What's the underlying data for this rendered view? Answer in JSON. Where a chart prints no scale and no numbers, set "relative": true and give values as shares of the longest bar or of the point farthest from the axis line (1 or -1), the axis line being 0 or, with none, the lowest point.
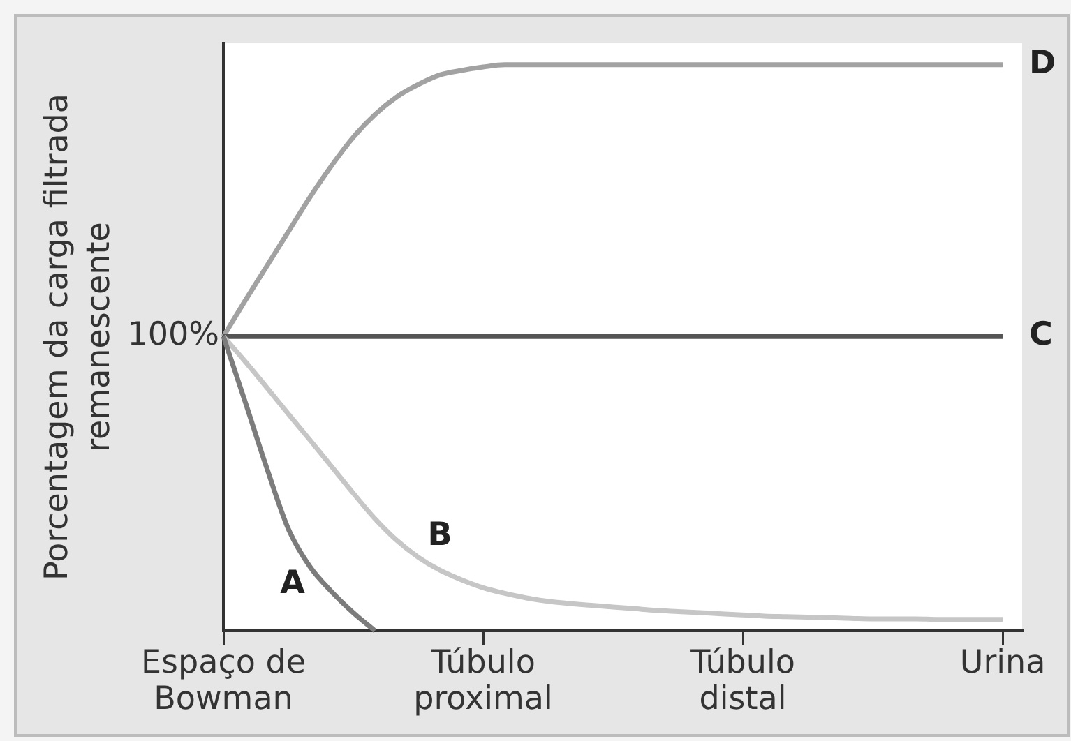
{
  "chart_data": {
    "type": "line",
    "relative": true,
    "ylabel": "Porcentagem da carga filtrada remanescente",
    "categories": [
      "Espaço de Bowman",
      null,
      null,
      null,
      null,
      null,
      null,
      null,
      null,
      null,
      null,
      null,
      "Túbulo proximal",
      null,
      null,
      null,
      null,
      null,
      null,
      null,
      null,
      null,
      null,
      null,
      "Túbulo distal",
      null,
      null,
      null,
      null,
      null,
      null,
      null,
      null,
      null,
      null,
      null,
      "Urina"
    ],
    "series": [
      {
        "name": "A",
        "color": "#7c7c7c",
        "values": [
          0.52,
          0.405,
          0.288,
          0.18,
          0.113,
          0.069,
          0.032,
          0,
          null,
          null,
          null,
          null,
          null,
          null,
          null,
          null,
          null,
          null,
          null,
          null,
          null,
          null,
          null,
          null,
          null,
          null,
          null,
          null,
          null,
          null,
          null,
          null,
          null,
          null,
          null,
          null,
          null
        ]
      },
      {
        "name": "B",
        "color": "#c6c6c6",
        "values": [
          0.52,
          0.476,
          0.43,
          0.383,
          0.337,
          0.29,
          0.243,
          0.198,
          0.16,
          0.13,
          0.107,
          0.09,
          0.076,
          0.066,
          0.058,
          0.052,
          0.048,
          0.045,
          0.042,
          0.039,
          0.036,
          0.034,
          0.032,
          0.03,
          0.028,
          0.026,
          0.025,
          0.024,
          0.023,
          0.022,
          0.021,
          0.021,
          0.021,
          0.02,
          0.02,
          0.02,
          0.02
        ]
      },
      {
        "name": "C",
        "color": "#555555",
        "values": [
          0.52,
          0.52,
          0.52,
          0.52,
          0.52,
          0.52,
          0.52,
          0.52,
          0.52,
          0.52,
          0.52,
          0.52,
          0.52,
          0.52,
          0.52,
          0.52,
          0.52,
          0.52,
          0.52,
          0.52,
          0.52,
          0.52,
          0.52,
          0.52,
          0.52,
          0.52,
          0.52,
          0.52,
          0.52,
          0.52,
          0.52,
          0.52,
          0.52,
          0.52,
          0.52,
          0.52,
          0.52
        ]
      },
      {
        "name": "D",
        "color": "#a2a2a2",
        "values": [
          0.52,
          0.583,
          0.644,
          0.705,
          0.766,
          0.822,
          0.872,
          0.912,
          0.943,
          0.965,
          0.982,
          0.99,
          0.996,
          1,
          1,
          1,
          1,
          1,
          1,
          1,
          1,
          1,
          1,
          1,
          1,
          1,
          1,
          1,
          1,
          1,
          1,
          1,
          1,
          1,
          1,
          1,
          1
        ]
      }
    ],
    "annotations": [
      "100%"
    ]
  }
}
